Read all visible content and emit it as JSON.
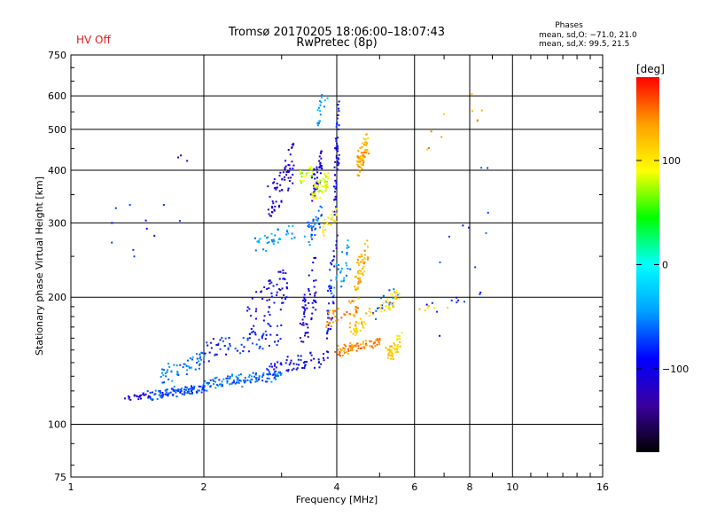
{
  "header": {
    "status": "HV Off",
    "status_color": "#e02020",
    "title_line1": "Tromsø 20170205 18:06:00–18:07:43",
    "title_line2": "RwPretec (8p)",
    "stats_title": "Phases",
    "stats_o": "mean, sd,O: −71.0, 21.0",
    "stats_x": "mean, sd,X:  99.5, 21.5"
  },
  "chart_data": {
    "type": "scatter",
    "title": "Tromsø 20170205 18:06:00–18:07:43",
    "subtitle": "RwPretec (8p)",
    "xlabel": "Frequency [MHz]",
    "ylabel": "Stationary phase Virtual Height [km]",
    "xscale": "log",
    "yscale": "log",
    "xlim": [
      1,
      16
    ],
    "ylim": [
      75,
      750
    ],
    "xticks": [
      1,
      2,
      4,
      6,
      8,
      10,
      16
    ],
    "xtick_labels": [
      "1",
      "2",
      "4",
      "6",
      "8",
      "10",
      "16"
    ],
    "yticks": [
      75,
      100,
      200,
      300,
      400,
      500,
      600,
      750
    ],
    "ytick_labels": [
      "75",
      "100",
      "200",
      "300",
      "400",
      "500",
      "600",
      "750"
    ],
    "colorbar": {
      "label": "[deg]",
      "range": [
        -180,
        180
      ],
      "ticks": [
        -100,
        0,
        100
      ],
      "tick_labels": [
        "−100",
        "0",
        "100"
      ],
      "colors": [
        "#000000",
        "#3a00a0",
        "#0000ff",
        "#00a0ff",
        "#00ffff",
        "#00ff00",
        "#ffff00",
        "#ffa000",
        "#ff0000"
      ]
    },
    "series": [
      {
        "clusters": [
          {
            "f0": 1.3,
            "f1": 1.55,
            "h0": 112,
            "h1": 120,
            "phase": -105,
            "n": 22,
            "spread": 0.01
          },
          {
            "f0": 1.5,
            "f1": 2.0,
            "h0": 114,
            "h1": 125,
            "phase": -70,
            "n": 110,
            "spread": 0.015
          },
          {
            "f0": 1.6,
            "f1": 2.0,
            "h0": 125,
            "h1": 150,
            "phase": -55,
            "n": 55,
            "spread": 0.02
          },
          {
            "f0": 2.0,
            "f1": 3.0,
            "h0": 120,
            "h1": 135,
            "phase": -60,
            "n": 120,
            "spread": 0.018
          },
          {
            "f0": 2.0,
            "f1": 3.0,
            "h0": 140,
            "h1": 175,
            "phase": -80,
            "n": 70,
            "spread": 0.03
          },
          {
            "f0": 2.8,
            "f1": 3.8,
            "h0": 130,
            "h1": 150,
            "phase": -95,
            "n": 60,
            "spread": 0.03
          },
          {
            "f0": 2.5,
            "f1": 3.1,
            "h0": 160,
            "h1": 240,
            "phase": -100,
            "n": 60,
            "spread": 0.02
          },
          {
            "f0": 2.6,
            "f1": 3.2,
            "h0": 250,
            "h1": 300,
            "phase": -45,
            "n": 35,
            "spread": 0.03
          },
          {
            "f0": 2.8,
            "f1": 3.2,
            "h0": 300,
            "h1": 470,
            "phase": -110,
            "n": 70,
            "spread": 0.012
          },
          {
            "f0": 3.3,
            "f1": 3.6,
            "h0": 140,
            "h1": 260,
            "phase": -105,
            "n": 60,
            "spread": 0.01
          },
          {
            "f0": 3.4,
            "f1": 3.7,
            "h0": 260,
            "h1": 330,
            "phase": -60,
            "n": 35,
            "spread": 0.02
          },
          {
            "f0": 3.5,
            "f1": 3.7,
            "h0": 330,
            "h1": 450,
            "phase": -110,
            "n": 45,
            "spread": 0.01
          },
          {
            "f0": 3.6,
            "f1": 3.8,
            "h0": 500,
            "h1": 650,
            "phase": -40,
            "n": 20,
            "spread": 0.01
          },
          {
            "f0": 3.8,
            "f1": 4.0,
            "h0": 150,
            "h1": 300,
            "phase": -90,
            "n": 45,
            "spread": 0.01
          },
          {
            "f0": 3.95,
            "f1": 4.05,
            "h0": 300,
            "h1": 620,
            "phase": -95,
            "n": 55,
            "spread": 0.005
          },
          {
            "f0": 3.9,
            "f1": 4.3,
            "h0": 190,
            "h1": 280,
            "phase": -45,
            "n": 30,
            "spread": 0.02
          },
          {
            "f0": 4.8,
            "f1": 5.5,
            "h0": 175,
            "h1": 215,
            "phase": -60,
            "n": 20,
            "spread": 0.02
          },
          {
            "f0": 6.3,
            "f1": 8.5,
            "h0": 180,
            "h1": 215,
            "phase": -90,
            "n": 10,
            "spread": 0.02
          },
          {
            "f0": 1.2,
            "f1": 1.9,
            "h0": 220,
            "h1": 490,
            "phase": -90,
            "n": 14,
            "spread": 0.05
          },
          {
            "f0": 6.5,
            "f1": 9.0,
            "h0": 120,
            "h1": 600,
            "phase": -70,
            "n": 10,
            "spread": 0.05
          }
        ]
      },
      {
        "clusters": [
          {
            "f0": 3.5,
            "f1": 3.8,
            "h0": 330,
            "h1": 400,
            "phase": 90,
            "n": 55,
            "spread": 0.02
          },
          {
            "f0": 3.3,
            "f1": 3.6,
            "h0": 370,
            "h1": 420,
            "phase": 75,
            "n": 25,
            "spread": 0.02
          },
          {
            "f0": 3.7,
            "f1": 4.0,
            "h0": 280,
            "h1": 330,
            "phase": 105,
            "n": 25,
            "spread": 0.02
          },
          {
            "f0": 4.45,
            "f1": 4.7,
            "h0": 380,
            "h1": 500,
            "phase": 130,
            "n": 70,
            "spread": 0.012
          },
          {
            "f0": 4.4,
            "f1": 4.7,
            "h0": 200,
            "h1": 280,
            "phase": 125,
            "n": 55,
            "spread": 0.015
          },
          {
            "f0": 3.8,
            "f1": 4.5,
            "h0": 170,
            "h1": 200,
            "phase": 140,
            "n": 45,
            "spread": 0.02
          },
          {
            "f0": 4.0,
            "f1": 5.0,
            "h0": 145,
            "h1": 160,
            "phase": 140,
            "n": 75,
            "spread": 0.02
          },
          {
            "f0": 4.3,
            "f1": 4.8,
            "h0": 160,
            "h1": 190,
            "phase": 120,
            "n": 35,
            "spread": 0.02
          },
          {
            "f0": 5.2,
            "f1": 5.6,
            "h0": 140,
            "h1": 165,
            "phase": 115,
            "n": 50,
            "spread": 0.02
          },
          {
            "f0": 5.0,
            "f1": 5.6,
            "h0": 180,
            "h1": 210,
            "phase": 105,
            "n": 30,
            "spread": 0.02
          },
          {
            "f0": 6.3,
            "f1": 8.5,
            "h0": 400,
            "h1": 640,
            "phase": 130,
            "n": 10,
            "spread": 0.02
          },
          {
            "f0": 6.1,
            "f1": 7.2,
            "h0": 185,
            "h1": 195,
            "phase": 110,
            "n": 6,
            "spread": 0.02
          }
        ]
      }
    ]
  }
}
